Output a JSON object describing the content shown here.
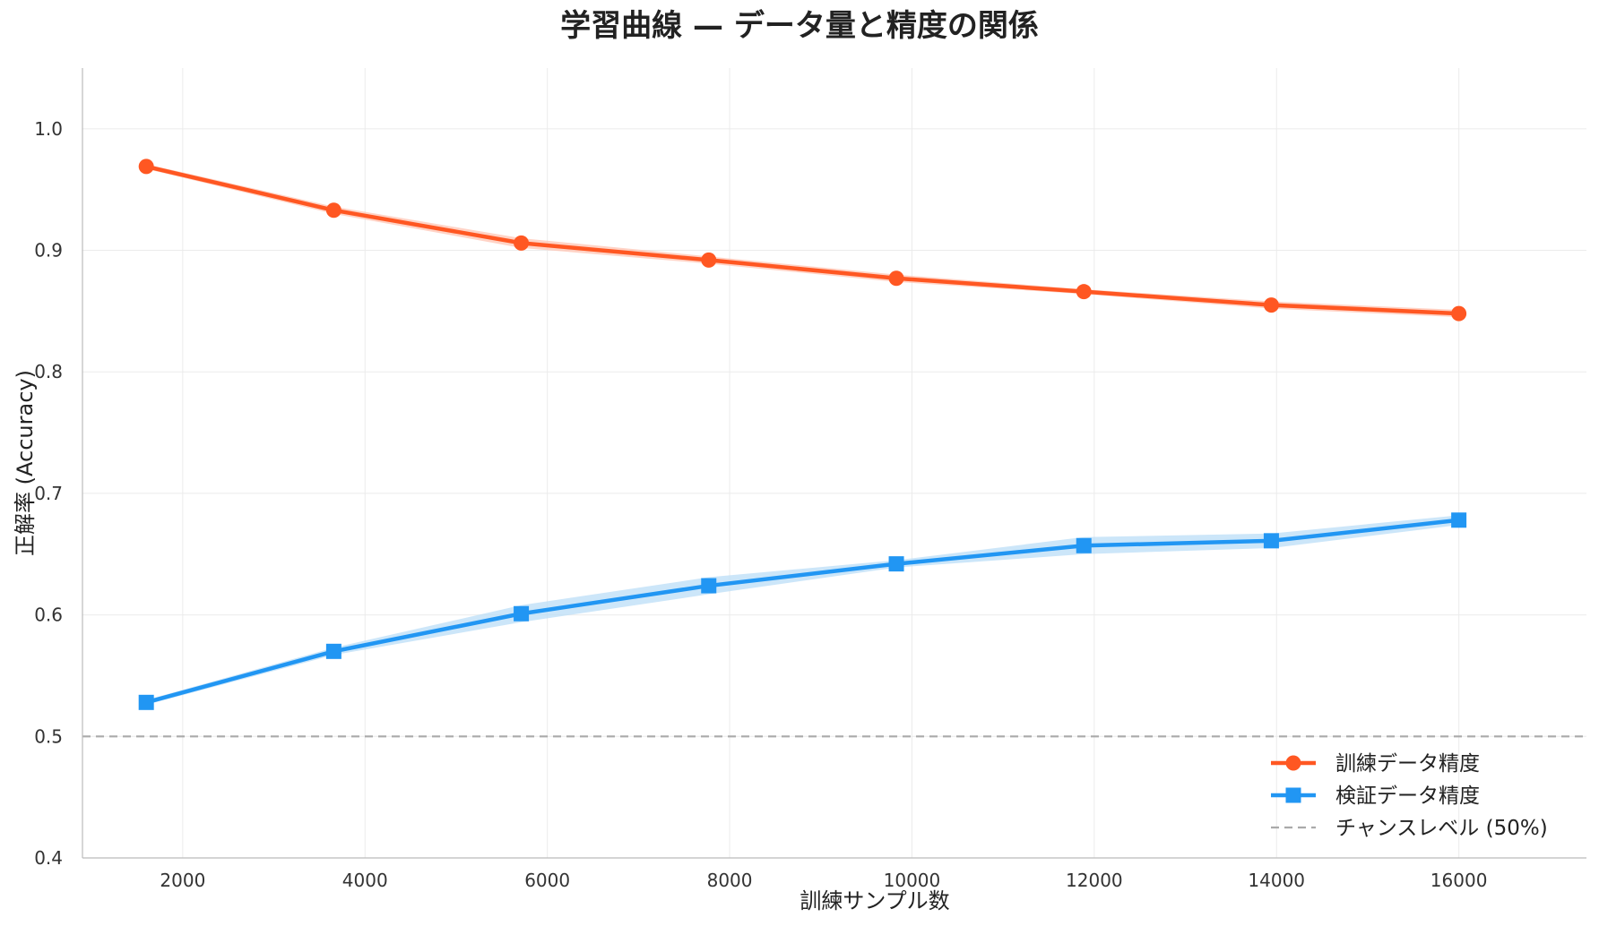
{
  "chart_data": {
    "type": "line",
    "title": "学習曲線 — データ量と精度の関係",
    "xlabel": "訓練サンプル数",
    "ylabel": "正解率 (Accuracy)",
    "xlim": [
      900,
      17400
    ],
    "ylim": [
      0.4,
      1.05
    ],
    "xticks": [
      2000,
      4000,
      6000,
      8000,
      10000,
      12000,
      14000,
      16000
    ],
    "yticks": [
      0.4,
      0.5,
      0.6,
      0.7,
      0.8,
      0.9,
      1.0
    ],
    "xtick_labels": [
      "2000",
      "4000",
      "6000",
      "8000",
      "10000",
      "12000",
      "14000",
      "16000"
    ],
    "ytick_labels": [
      "0.4",
      "0.5",
      "0.6",
      "0.7",
      "0.8",
      "0.9",
      "1.0"
    ],
    "x": [
      1600,
      3657,
      5714,
      7771,
      9829,
      11886,
      13943,
      16000
    ],
    "grid": true,
    "legend_position": "bottom-right",
    "series": [
      {
        "name": "訓練データ精度",
        "marker": "circle",
        "color": "#FF5722",
        "band_color": "#FFC4B3",
        "values": [
          0.969,
          0.933,
          0.906,
          0.892,
          0.877,
          0.866,
          0.855,
          0.848
        ],
        "band": [
          0.002,
          0.003,
          0.004,
          0.003,
          0.003,
          0.002,
          0.003,
          0.003
        ]
      },
      {
        "name": "検証データ精度",
        "marker": "square",
        "color": "#2196F3",
        "band_color": "#BBDDF7",
        "values": [
          0.528,
          0.57,
          0.601,
          0.624,
          0.642,
          0.657,
          0.661,
          0.678
        ],
        "band": [
          0.002,
          0.003,
          0.007,
          0.007,
          0.003,
          0.007,
          0.006,
          0.004
        ]
      }
    ],
    "reference_line": {
      "name": "チャンスレベル (50%)",
      "value": 0.5,
      "color": "#AAAAAA"
    }
  }
}
